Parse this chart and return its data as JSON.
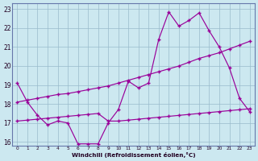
{
  "background_color": "#cce8f0",
  "line_color": "#990099",
  "xlim": [
    -0.5,
    23.5
  ],
  "ylim": [
    15.8,
    23.3
  ],
  "xticks": [
    0,
    1,
    2,
    3,
    4,
    5,
    6,
    7,
    8,
    9,
    10,
    11,
    12,
    13,
    14,
    15,
    16,
    17,
    18,
    19,
    20,
    21,
    22,
    23
  ],
  "yticks": [
    16,
    17,
    18,
    19,
    20,
    21,
    22,
    23
  ],
  "xlabel": "Windchill (Refroidissement éolien,°C)",
  "line1_x": [
    0,
    1,
    2,
    3,
    4,
    5,
    6,
    7,
    8,
    9,
    10,
    11,
    12,
    13,
    14,
    15,
    16,
    17,
    18,
    19,
    20,
    21,
    22,
    23
  ],
  "line1_y": [
    19.1,
    18.1,
    17.4,
    16.9,
    17.1,
    17.0,
    15.9,
    15.9,
    15.9,
    17.0,
    17.7,
    19.2,
    18.85,
    19.1,
    21.4,
    22.85,
    22.1,
    22.4,
    22.8,
    21.85,
    21.0,
    19.9,
    18.3,
    17.6
  ],
  "line2_x": [
    0,
    1,
    2,
    3,
    4,
    5,
    6,
    7,
    8,
    9,
    10,
    11,
    12,
    13,
    14,
    15,
    16,
    17,
    18,
    19,
    20,
    21,
    22,
    23
  ],
  "line2_y": [
    18.1,
    18.2,
    18.3,
    18.4,
    18.5,
    18.55,
    18.65,
    18.75,
    18.85,
    18.95,
    19.1,
    19.25,
    19.4,
    19.55,
    19.7,
    19.85,
    20.0,
    20.2,
    20.4,
    20.55,
    20.7,
    20.9,
    21.1,
    21.3
  ],
  "line3_x": [
    0,
    1,
    2,
    3,
    4,
    5,
    6,
    7,
    8,
    9,
    10,
    11,
    12,
    13,
    14,
    15,
    16,
    17,
    18,
    19,
    20,
    21,
    22,
    23
  ],
  "line3_y": [
    17.1,
    17.15,
    17.2,
    17.25,
    17.3,
    17.35,
    17.4,
    17.45,
    17.5,
    17.1,
    17.1,
    17.15,
    17.2,
    17.25,
    17.3,
    17.35,
    17.4,
    17.45,
    17.5,
    17.55,
    17.6,
    17.65,
    17.7,
    17.75
  ]
}
